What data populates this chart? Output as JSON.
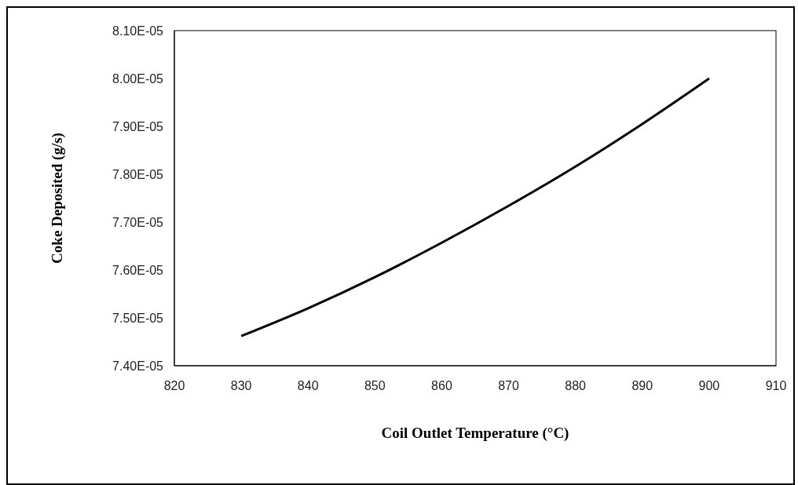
{
  "chart_data": {
    "type": "line",
    "xlabel": "Coil Outlet Temperature (°C)",
    "ylabel": "Coke Deposited (g/s)",
    "x": [
      830,
      840,
      850,
      860,
      870,
      880,
      890,
      900
    ],
    "series": [
      {
        "color": "#000000",
        "values": [
          7.462e-05,
          7.52e-05,
          7.585e-05,
          7.657e-05,
          7.734e-05,
          7.816e-05,
          7.905e-05,
          8e-05
        ]
      }
    ],
    "xlim": [
      820,
      910
    ],
    "xticks": [
      820,
      830,
      840,
      850,
      860,
      870,
      880,
      890,
      900,
      910
    ],
    "ylim": [
      7.4e-05,
      8.1e-05
    ],
    "yticks": [
      {
        "value": 7.4e-05,
        "label": "7.40E-05"
      },
      {
        "value": 7.5e-05,
        "label": "7.50E-05"
      },
      {
        "value": 7.6e-05,
        "label": "7.60E-05"
      },
      {
        "value": 7.7e-05,
        "label": "7.70E-05"
      },
      {
        "value": 7.8e-05,
        "label": "7.80E-05"
      },
      {
        "value": 7.9e-05,
        "label": "7.90E-05"
      },
      {
        "value": 8e-05,
        "label": "8.00E-05"
      },
      {
        "value": 8.1e-05,
        "label": "8.10E-05"
      }
    ],
    "grid": false,
    "legend": false,
    "marker": "none",
    "line_style": "solid"
  }
}
